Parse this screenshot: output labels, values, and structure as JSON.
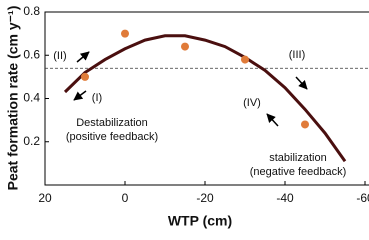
{
  "chart_data": {
    "type": "scatter",
    "x_label": "WTP (cm)",
    "y_label": "Peat formation rate (cm y⁻¹)",
    "xlim": [
      20,
      -60
    ],
    "xticks": [
      20,
      0,
      -20,
      -40,
      -60
    ],
    "ylim": [
      0,
      0.8
    ],
    "yticks": [
      0.2,
      0.4,
      0.6,
      0.8
    ],
    "x": [
      10,
      0,
      -15,
      -30,
      -45
    ],
    "values": [
      0.5,
      0.7,
      0.64,
      0.58,
      0.28
    ],
    "color": "#e07b39",
    "fit": {
      "type": "line",
      "color": "#4a0f0f",
      "x": [
        15,
        10,
        5,
        0,
        -5,
        -10,
        -15,
        -20,
        -25,
        -30,
        -35,
        -40,
        -45,
        -50,
        -55
      ],
      "values": [
        0.43,
        0.52,
        0.58,
        0.63,
        0.67,
        0.69,
        0.69,
        0.67,
        0.64,
        0.59,
        0.53,
        0.45,
        0.35,
        0.24,
        0.11
      ]
    },
    "threshold": 0.54,
    "annotations": [
      "(II)",
      "(I)",
      "(III)",
      "(IV)",
      "Destabilization",
      "(positive feedback)",
      "stabilization",
      "(negative feedback)"
    ]
  }
}
